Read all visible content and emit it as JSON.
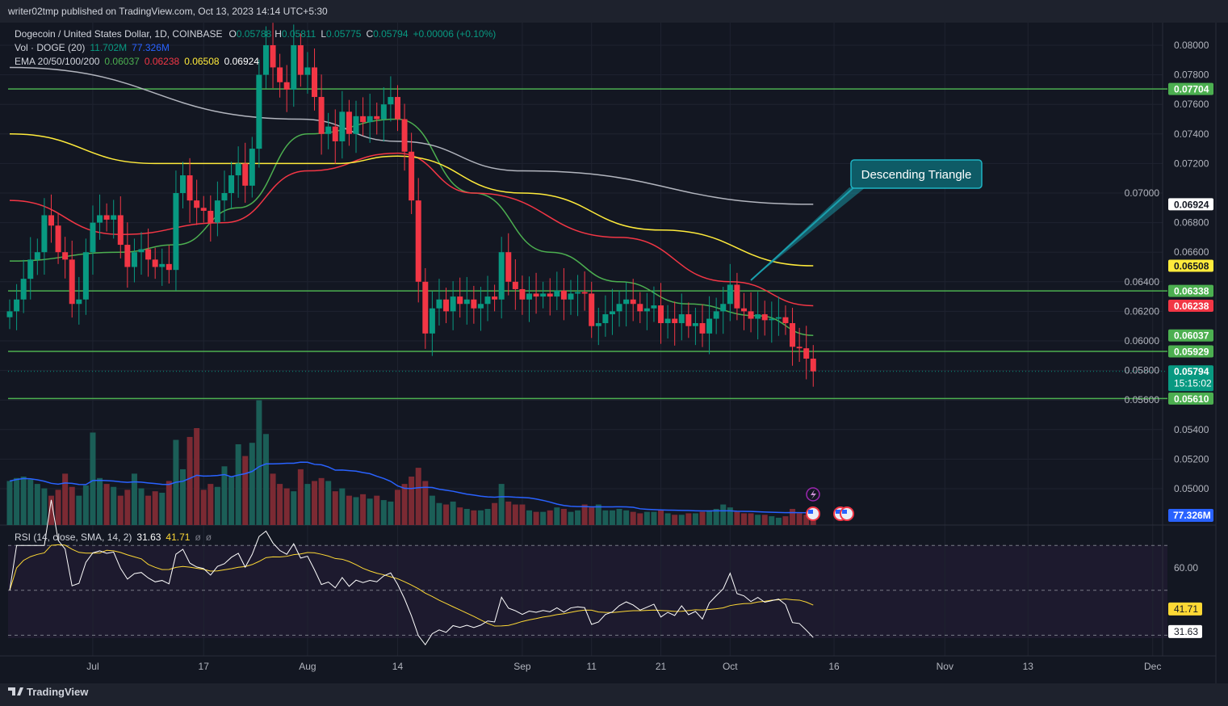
{
  "publish_line": "writer02tmp published on TradingView.com, Oct 13, 2023 14:14 UTC+5:30",
  "legend": {
    "symbol": "Dogecoin / United States Dollar, 1D, COINBASE",
    "o_label": "O",
    "o_value": "0.05788",
    "h_label": "H",
    "h_value": "0.05811",
    "l_label": "L",
    "l_value": "0.05775",
    "c_label": "C",
    "c_value": "0.05794",
    "change": "+0.00006 (+0.10%)",
    "vol_label": "Vol · DOGE (20)",
    "vol_value": "11.702M",
    "vol_ma": "77.326M",
    "ema_label": "EMA 20/50/100/200",
    "ema20": "0.06037",
    "ema50": "0.06238",
    "ema100": "0.06508",
    "ema200": "0.06924",
    "rsi_label": "RSI (14, close, SMA, 14, 2)",
    "rsi_value": "31.63",
    "rsi_sma": "41.71",
    "rsi_extra1": "ø",
    "rsi_extra2": "ø"
  },
  "colors": {
    "up": "#089981",
    "down": "#f23645",
    "ema20": "#4caf50",
    "ema50": "#f23645",
    "ema100": "#ffeb3b",
    "ema200": "#b2b5be",
    "level": "#4caf50",
    "vol_ma": "#2962ff",
    "rsi": "#ffffff",
    "rsi_sma": "#fdd835",
    "annotation": "#1aa0ae"
  },
  "annotation": {
    "text": "Descending Triangle"
  },
  "price_axis": {
    "ticks": [
      "0.08000",
      "0.07800",
      "0.07600",
      "0.07400",
      "0.07200",
      "0.07000",
      "0.06800",
      "0.06600",
      "0.06400",
      "0.06200",
      "0.06000",
      "0.05800",
      "0.05600",
      "0.05400",
      "0.05200",
      "0.05000"
    ],
    "labels": [
      {
        "text": "0.07704",
        "kind": "level"
      },
      {
        "text": "0.06924",
        "kind": "ema200"
      },
      {
        "text": "0.06508",
        "kind": "ema100"
      },
      {
        "text": "0.06338",
        "kind": "level"
      },
      {
        "text": "0.06238",
        "kind": "ema50"
      },
      {
        "text": "0.06037",
        "kind": "ema20"
      },
      {
        "text": "0.05929",
        "kind": "level"
      },
      {
        "text": "0.05794",
        "kind": "last",
        "sub": "15:15:02"
      },
      {
        "text": "0.05610",
        "kind": "level"
      }
    ],
    "volume_label": "77.326M",
    "rsi_ticks": [
      "60.00"
    ],
    "rsi_labels": [
      "41.71",
      "31.63"
    ]
  },
  "time_axis": [
    {
      "label": "Jul",
      "date": "2023-07-01"
    },
    {
      "label": "17",
      "date": "2023-07-17"
    },
    {
      "label": "Aug",
      "date": "2023-08-01"
    },
    {
      "label": "14",
      "date": "2023-08-14"
    },
    {
      "label": "Sep",
      "date": "2023-09-01"
    },
    {
      "label": "11",
      "date": "2023-09-11"
    },
    {
      "label": "21",
      "date": "2023-09-21"
    },
    {
      "label": "Oct",
      "date": "2023-10-01"
    },
    {
      "label": "16",
      "date": "2023-10-16"
    },
    {
      "label": "Nov",
      "date": "2023-11-01"
    },
    {
      "label": "13",
      "date": "2023-11-13"
    },
    {
      "label": "Dec",
      "date": "2023-12-01"
    }
  ],
  "footer": {
    "brand": "TradingView"
  },
  "chart_data": {
    "type": "candlestick",
    "title": "Dogecoin / United States Dollar, 1D, COINBASE",
    "ylim": [
      0.049,
      0.081
    ],
    "levels": [
      0.07704,
      0.06338,
      0.05929,
      0.0561
    ],
    "last_price": 0.05794,
    "months": [
      {
        "month": "2023-06",
        "first_day": 19,
        "close": [
          0.062,
          0.0628,
          0.0642,
          0.0655,
          0.066,
          0.0685,
          0.0678,
          0.066,
          0.0655,
          0.0625,
          0.0628,
          0.066
        ],
        "volume_m": [
          300,
          320,
          330,
          310,
          280,
          250,
          200,
          240,
          350,
          260,
          200,
          270
        ]
      },
      {
        "month": "2023-07",
        "first_day": 1,
        "close": [
          0.068,
          0.0685,
          0.0682,
          0.0685,
          0.0665,
          0.065,
          0.066,
          0.0662,
          0.0655,
          0.065,
          0.0652,
          0.0648,
          0.07,
          0.0712,
          0.0695,
          0.069,
          0.0688,
          0.068,
          0.0695,
          0.07,
          0.0712,
          0.072,
          0.0705,
          0.073,
          0.078,
          0.08,
          0.0785,
          0.0775,
          0.077,
          0.08,
          0.078
        ],
        "volume_m": [
          630,
          320,
          280,
          260,
          200,
          240,
          350,
          250,
          200,
          230,
          220,
          300,
          580,
          380,
          600,
          660,
          240,
          280,
          260,
          400,
          330,
          550,
          470,
          560,
          850,
          620,
          350,
          280,
          250,
          230,
          380
        ]
      },
      {
        "month": "2023-08",
        "first_day": 1,
        "close": [
          0.0785,
          0.0765,
          0.074,
          0.0745,
          0.0735,
          0.0755,
          0.074,
          0.0752,
          0.0748,
          0.0752,
          0.075,
          0.076,
          0.0765,
          0.075,
          0.0728,
          0.0695,
          0.064,
          0.0605,
          0.0622,
          0.0628,
          0.062,
          0.063,
          0.0625,
          0.0628,
          0.0622,
          0.0625,
          0.063,
          0.0628,
          0.066,
          0.064,
          0.0635
        ],
        "volume_m": [
          280,
          300,
          320,
          300,
          230,
          250,
          200,
          190,
          210,
          180,
          200,
          170,
          160,
          240,
          280,
          330,
          390,
          300,
          200,
          150,
          140,
          160,
          120,
          110,
          100,
          100,
          110,
          150,
          280,
          160,
          140
        ]
      },
      {
        "month": "2023-09",
        "first_day": 1,
        "close": [
          0.0628,
          0.0632,
          0.063,
          0.0632,
          0.063,
          0.0634,
          0.0628,
          0.0632,
          0.0633,
          0.0632,
          0.061,
          0.0612,
          0.0618,
          0.062,
          0.0625,
          0.0628,
          0.0625,
          0.062,
          0.0622,
          0.0624,
          0.0612,
          0.0615,
          0.0612,
          0.0618,
          0.061,
          0.0612,
          0.0605,
          0.0615,
          0.062,
          0.0625
        ],
        "volume_m": [
          140,
          100,
          90,
          90,
          100,
          120,
          110,
          90,
          100,
          140,
          120,
          140,
          100,
          100,
          110,
          100,
          90,
          80,
          90,
          90,
          100,
          80,
          70,
          70,
          80,
          80,
          90,
          100,
          110,
          140
        ]
      },
      {
        "month": "2023-10",
        "first_day": 1,
        "close": [
          0.0638,
          0.0622,
          0.062,
          0.0615,
          0.0618,
          0.0614,
          0.0615,
          0.0616,
          0.0612,
          0.0596,
          0.0595,
          0.0588,
          0.05794
        ],
        "volume_m": [
          120,
          90,
          80,
          80,
          70,
          70,
          60,
          50,
          60,
          110,
          80,
          70,
          30
        ]
      }
    ],
    "ema": {
      "ema20": [
        [
          "2023-06-19",
          0.0654
        ],
        [
          "2023-07-05",
          0.066
        ],
        [
          "2023-07-13",
          0.0665
        ],
        [
          "2023-07-22",
          0.069
        ],
        [
          "2023-08-01",
          0.074
        ],
        [
          "2023-08-14",
          0.075
        ],
        [
          "2023-08-25",
          0.07
        ],
        [
          "2023-09-05",
          0.066
        ],
        [
          "2023-09-15",
          0.064
        ],
        [
          "2023-09-25",
          0.0625
        ],
        [
          "2023-10-05",
          0.0617
        ],
        [
          "2023-10-13",
          0.06037
        ]
      ],
      "ema50": [
        [
          "2023-06-19",
          0.0695
        ],
        [
          "2023-07-05",
          0.0672
        ],
        [
          "2023-07-20",
          0.068
        ],
        [
          "2023-08-01",
          0.0715
        ],
        [
          "2023-08-14",
          0.0727
        ],
        [
          "2023-08-25",
          0.07
        ],
        [
          "2023-09-15",
          0.067
        ],
        [
          "2023-10-01",
          0.064
        ],
        [
          "2023-10-13",
          0.06238
        ]
      ],
      "ema100": [
        [
          "2023-06-19",
          0.074
        ],
        [
          "2023-07-10",
          0.072
        ],
        [
          "2023-08-05",
          0.072
        ],
        [
          "2023-08-14",
          0.0725
        ],
        [
          "2023-09-01",
          0.07
        ],
        [
          "2023-09-21",
          0.0675
        ],
        [
          "2023-10-13",
          0.06508
        ]
      ],
      "ema200": [
        [
          "2023-06-19",
          0.0785
        ],
        [
          "2023-07-31",
          0.075
        ],
        [
          "2023-08-14",
          0.0735
        ],
        [
          "2023-09-01",
          0.0715
        ],
        [
          "2023-10-13",
          0.06924
        ]
      ]
    },
    "rsi": {
      "overbought": 70,
      "middle": 50,
      "oversold": 30,
      "last": 31.63,
      "sma_last": 41.71
    }
  }
}
